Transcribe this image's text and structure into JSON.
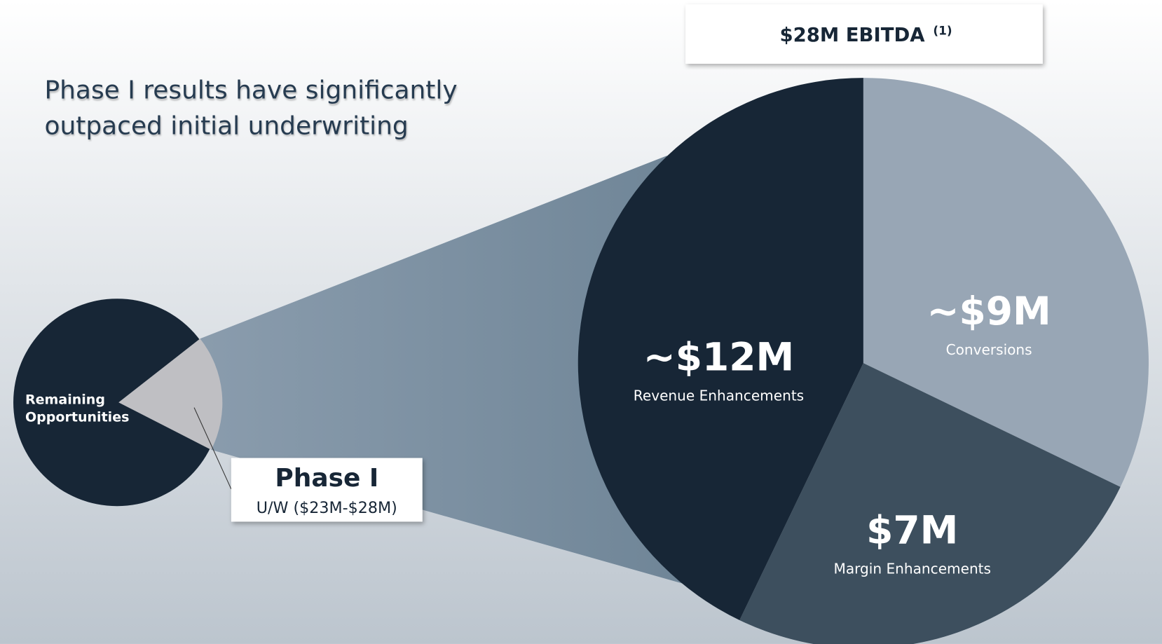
{
  "title": "Phase I results have significantly outpaced initial underwriting",
  "ebitda_box": {
    "text": "$28M EBITDA",
    "note": "(1)"
  },
  "small_pie": {
    "label": "Remaining Opportunities"
  },
  "callout": {
    "title": "Phase I",
    "subtitle": "U/W  ($23M-$28M)"
  },
  "chart_data": {
    "type": "pie",
    "categories": [
      "Revenue Enhancements",
      "Conversions",
      "Margin Enhancements"
    ],
    "values": [
      12,
      9,
      7
    ],
    "value_labels": [
      "~$12M",
      "~$9M",
      "$7M"
    ],
    "colors": [
      "#172636",
      "#98a6b5",
      "#3d4f5e"
    ]
  }
}
